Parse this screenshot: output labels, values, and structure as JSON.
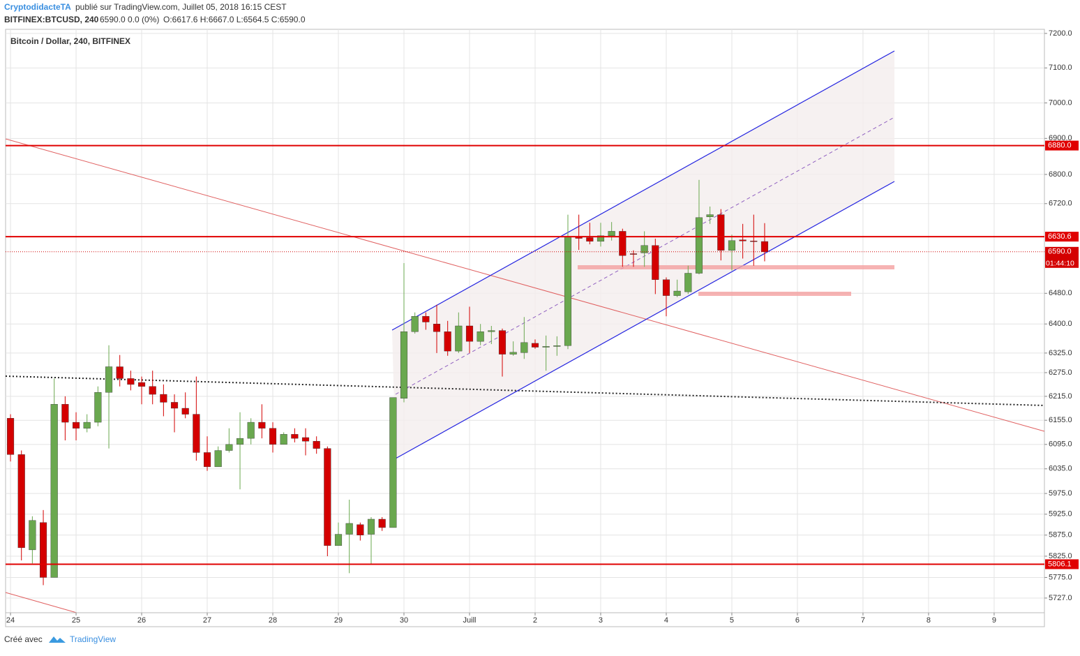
{
  "header": {
    "author": "CryptodidacteTA",
    "published": "publié sur TradingView.com, Juillet 05, 2018 16:15 CEST",
    "symbol": "BITFINEX:BTCUSD, 240",
    "change": "6590.0 0.0 (0%)",
    "ohlc": "O:6617.6 H:6667.0 L:6564.5 C:6590.0"
  },
  "footer": {
    "made_with": "Créé avec",
    "brand": "TradingView"
  },
  "chart_data": {
    "type": "candlestick",
    "title": "Bitcoin / Dollar, 240, BITFINEX",
    "log_scale": true,
    "grid": true,
    "up_color": "#6aa84f",
    "down_color": "#d40000",
    "open": [
      6160,
      6070,
      5840,
      5905,
      5775,
      6195,
      6150,
      6135,
      6150,
      6225,
      6290,
      6260,
      6250,
      6240,
      6220,
      6200,
      6185,
      6170,
      6075,
      6040,
      6080,
      6095,
      6110,
      6150,
      6135,
      6095,
      6120,
      6112,
      6103,
      6085,
      5850,
      5877,
      5900,
      5877,
      5913,
      5893,
      6210,
      6380,
      6420,
      6400,
      6380,
      6330,
      6395,
      6355,
      6380,
      6383,
      6322,
      6326,
      6350,
      6340,
      6342,
      6344,
      6630,
      6628,
      6618,
      6633,
      6645,
      6585,
      6587,
      6607,
      6516,
      6474,
      6484,
      6533,
      6684,
      6690,
      6594,
      6622,
      6619,
      6617.6
    ],
    "high": [
      6170,
      6080,
      5920,
      5935,
      6260,
      6215,
      6175,
      6170,
      6240,
      6345,
      6320,
      6280,
      6265,
      6280,
      6245,
      6220,
      6225,
      6265,
      6115,
      6090,
      6135,
      6175,
      6160,
      6195,
      6150,
      6125,
      6135,
      6135,
      6115,
      6090,
      5905,
      5960,
      5905,
      5918,
      5918,
      6212,
      6560,
      6430,
      6430,
      6450,
      6408,
      6430,
      6445,
      6400,
      6395,
      6388,
      6355,
      6418,
      6360,
      6370,
      6368,
      6690,
      6690,
      6668,
      6668,
      6670,
      6652,
      6594,
      6645,
      6625,
      6522,
      6516,
      6553,
      6785,
      6712,
      6705,
      6636,
      6665,
      6690,
      6667
    ],
    "low": [
      6053,
      5815,
      5808,
      5757,
      5775,
      6105,
      6105,
      6125,
      6140,
      6085,
      6240,
      6230,
      6195,
      6195,
      6165,
      6125,
      6160,
      6055,
      6030,
      6040,
      6075,
      5985,
      6095,
      6110,
      6075,
      6095,
      6100,
      6068,
      6072,
      5825,
      5850,
      5785,
      5862,
      5805,
      5885,
      5893,
      6200,
      6375,
      6385,
      6325,
      6318,
      6325,
      6325,
      6345,
      6348,
      6265,
      6318,
      6310,
      6336,
      6280,
      6318,
      6335,
      6595,
      6610,
      6604,
      6620,
      6550,
      6550,
      6550,
      6478,
      6420,
      6470,
      6478,
      6530,
      6665,
      6567,
      6540,
      6572,
      6553,
      6564.5
    ],
    "close": [
      6070,
      5845,
      5910,
      5775,
      6195,
      6150,
      6135,
      6150,
      6225,
      6290,
      6260,
      6245,
      6240,
      6220,
      6200,
      6185,
      6170,
      6075,
      6040,
      6080,
      6095,
      6110,
      6150,
      6135,
      6095,
      6120,
      6110,
      6103,
      6085,
      5850,
      5877,
      5903,
      5875,
      5913,
      5893,
      6212,
      6380,
      6420,
      6405,
      6380,
      6330,
      6395,
      6355,
      6380,
      6383,
      6322,
      6327,
      6352,
      6340,
      6342,
      6344,
      6630,
      6626,
      6618,
      6633,
      6645,
      6580,
      6583,
      6607,
      6516,
      6474,
      6486,
      6533,
      6682,
      6690,
      6594,
      6620,
      6619,
      6618,
      6590
    ],
    "xlim": [
      -0.45,
      94.6
    ],
    "xticks": [
      {
        "value": 0,
        "label": "24"
      },
      {
        "value": 6,
        "label": "25"
      },
      {
        "value": 12,
        "label": "26"
      },
      {
        "value": 18,
        "label": "27"
      },
      {
        "value": 24,
        "label": "28"
      },
      {
        "value": 30,
        "label": "29"
      },
      {
        "value": 36,
        "label": "30"
      },
      {
        "value": 42,
        "label": "Juill"
      },
      {
        "value": 48,
        "label": "2"
      },
      {
        "value": 54,
        "label": "3"
      },
      {
        "value": 60,
        "label": "4"
      },
      {
        "value": 66,
        "label": "5"
      },
      {
        "value": 72,
        "label": "6"
      },
      {
        "value": 78,
        "label": "7"
      },
      {
        "value": 84,
        "label": "8"
      },
      {
        "value": 90,
        "label": "9"
      }
    ],
    "ylim": [
      5693,
      7212
    ],
    "yticks": [
      {
        "value": 7200,
        "label": "7200.0"
      },
      {
        "value": 7100,
        "label": "7100.0"
      },
      {
        "value": 7000,
        "label": "7000.0"
      },
      {
        "value": 6900,
        "label": "6900.0"
      },
      {
        "value": 6800,
        "label": "6800.0"
      },
      {
        "value": 6720,
        "label": "6720.0"
      },
      {
        "value": 6480,
        "label": "6480.0"
      },
      {
        "value": 6400,
        "label": "6400.0"
      },
      {
        "value": 6325,
        "label": "6325.0"
      },
      {
        "value": 6275,
        "label": "6275.0"
      },
      {
        "value": 6215,
        "label": "6215.0"
      },
      {
        "value": 6155,
        "label": "6155.0"
      },
      {
        "value": 6095,
        "label": "6095.0"
      },
      {
        "value": 6035,
        "label": "6035.0"
      },
      {
        "value": 5975,
        "label": "5975.0"
      },
      {
        "value": 5925,
        "label": "5925.0"
      },
      {
        "value": 5875,
        "label": "5875.0"
      },
      {
        "value": 5825,
        "label": "5825.0"
      },
      {
        "value": 5775,
        "label": "5775.0"
      },
      {
        "value": 5727,
        "label": "5727.0"
      }
    ],
    "levels": [
      {
        "value": 6880,
        "label": "6880.0"
      },
      {
        "value": 6630.6,
        "label": "6630.6"
      },
      {
        "value": 5806.1,
        "label": "5806.1"
      }
    ],
    "last_price": {
      "value": 6590,
      "label": "6590.0"
    },
    "countdown": "01:44:10"
  }
}
